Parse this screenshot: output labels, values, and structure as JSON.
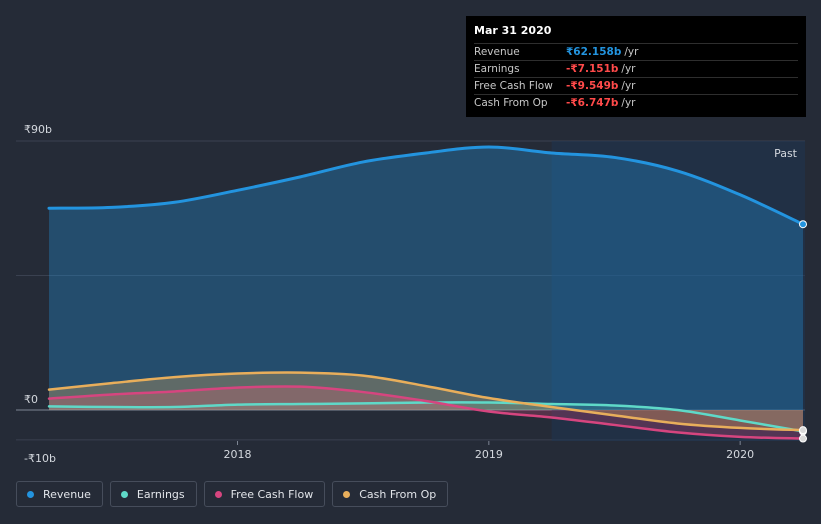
{
  "tooltip": {
    "date": "Mar 31 2020",
    "rows": [
      {
        "label": "Revenue",
        "value": "₹62.158b",
        "unit": "/yr",
        "color": "#2394df"
      },
      {
        "label": "Earnings",
        "value": "-₹7.151b",
        "unit": "/yr",
        "color": "#ff4a4a"
      },
      {
        "label": "Free Cash Flow",
        "value": "-₹9.549b",
        "unit": "/yr",
        "color": "#ff4a4a"
      },
      {
        "label": "Cash From Op",
        "value": "-₹6.747b",
        "unit": "/yr",
        "color": "#ff4a4a"
      }
    ]
  },
  "legend": [
    {
      "label": "Revenue",
      "color": "#2394df"
    },
    {
      "label": "Earnings",
      "color": "#5fd9c8"
    },
    {
      "label": "Free Cash Flow",
      "color": "#d6457f"
    },
    {
      "label": "Cash From Op",
      "color": "#e8ae5b"
    }
  ],
  "chart_data": {
    "type": "area",
    "past_label": "Past",
    "y_tick_labels": [
      "₹90b",
      "₹0",
      "-₹10b"
    ],
    "y_ticks": [
      90,
      0,
      -10
    ],
    "x_tick_labels": [
      "2018",
      "2019",
      "2020"
    ],
    "x_ticks": [
      2018,
      2019,
      2020
    ],
    "xlim": [
      2017.25,
      2020.25
    ],
    "ylim": [
      -10,
      90
    ],
    "series": [
      {
        "name": "Revenue",
        "color": "#2394df",
        "x": [
          2017.25,
          2017.5,
          2017.75,
          2018.0,
          2018.25,
          2018.5,
          2018.75,
          2019.0,
          2019.25,
          2019.5,
          2019.75,
          2020.0,
          2020.25
        ],
        "values": [
          67.5,
          67.8,
          69.5,
          73.5,
          78.0,
          83.0,
          86.0,
          88.0,
          86.0,
          84.5,
          80.0,
          72.0,
          62.158
        ]
      },
      {
        "name": "Earnings",
        "color": "#5fd9c8",
        "x": [
          2017.25,
          2017.5,
          2017.75,
          2018.0,
          2018.25,
          2018.5,
          2018.75,
          2019.0,
          2019.25,
          2019.5,
          2019.75,
          2020.0,
          2020.25
        ],
        "values": [
          1.2,
          1.0,
          1.0,
          1.8,
          2.0,
          2.2,
          2.5,
          2.5,
          2.0,
          1.5,
          0.0,
          -3.5,
          -7.151
        ]
      },
      {
        "name": "Free Cash Flow",
        "color": "#d6457f",
        "x": [
          2017.25,
          2017.5,
          2017.75,
          2018.0,
          2018.25,
          2018.5,
          2018.75,
          2019.0,
          2019.25,
          2019.5,
          2019.75,
          2020.0,
          2020.25
        ],
        "values": [
          3.8,
          5.2,
          6.2,
          7.5,
          7.8,
          6.0,
          3.0,
          -0.5,
          -2.5,
          -5.0,
          -7.5,
          -9.0,
          -9.549
        ]
      },
      {
        "name": "Cash From Op",
        "color": "#e8ae5b",
        "x": [
          2017.25,
          2017.5,
          2017.75,
          2018.0,
          2018.25,
          2018.5,
          2018.75,
          2019.0,
          2019.25,
          2019.5,
          2019.75,
          2020.0,
          2020.25
        ],
        "values": [
          6.8,
          9.0,
          11.0,
          12.2,
          12.5,
          11.5,
          8.0,
          4.0,
          1.0,
          -1.8,
          -4.5,
          -6.0,
          -6.747
        ]
      }
    ]
  }
}
